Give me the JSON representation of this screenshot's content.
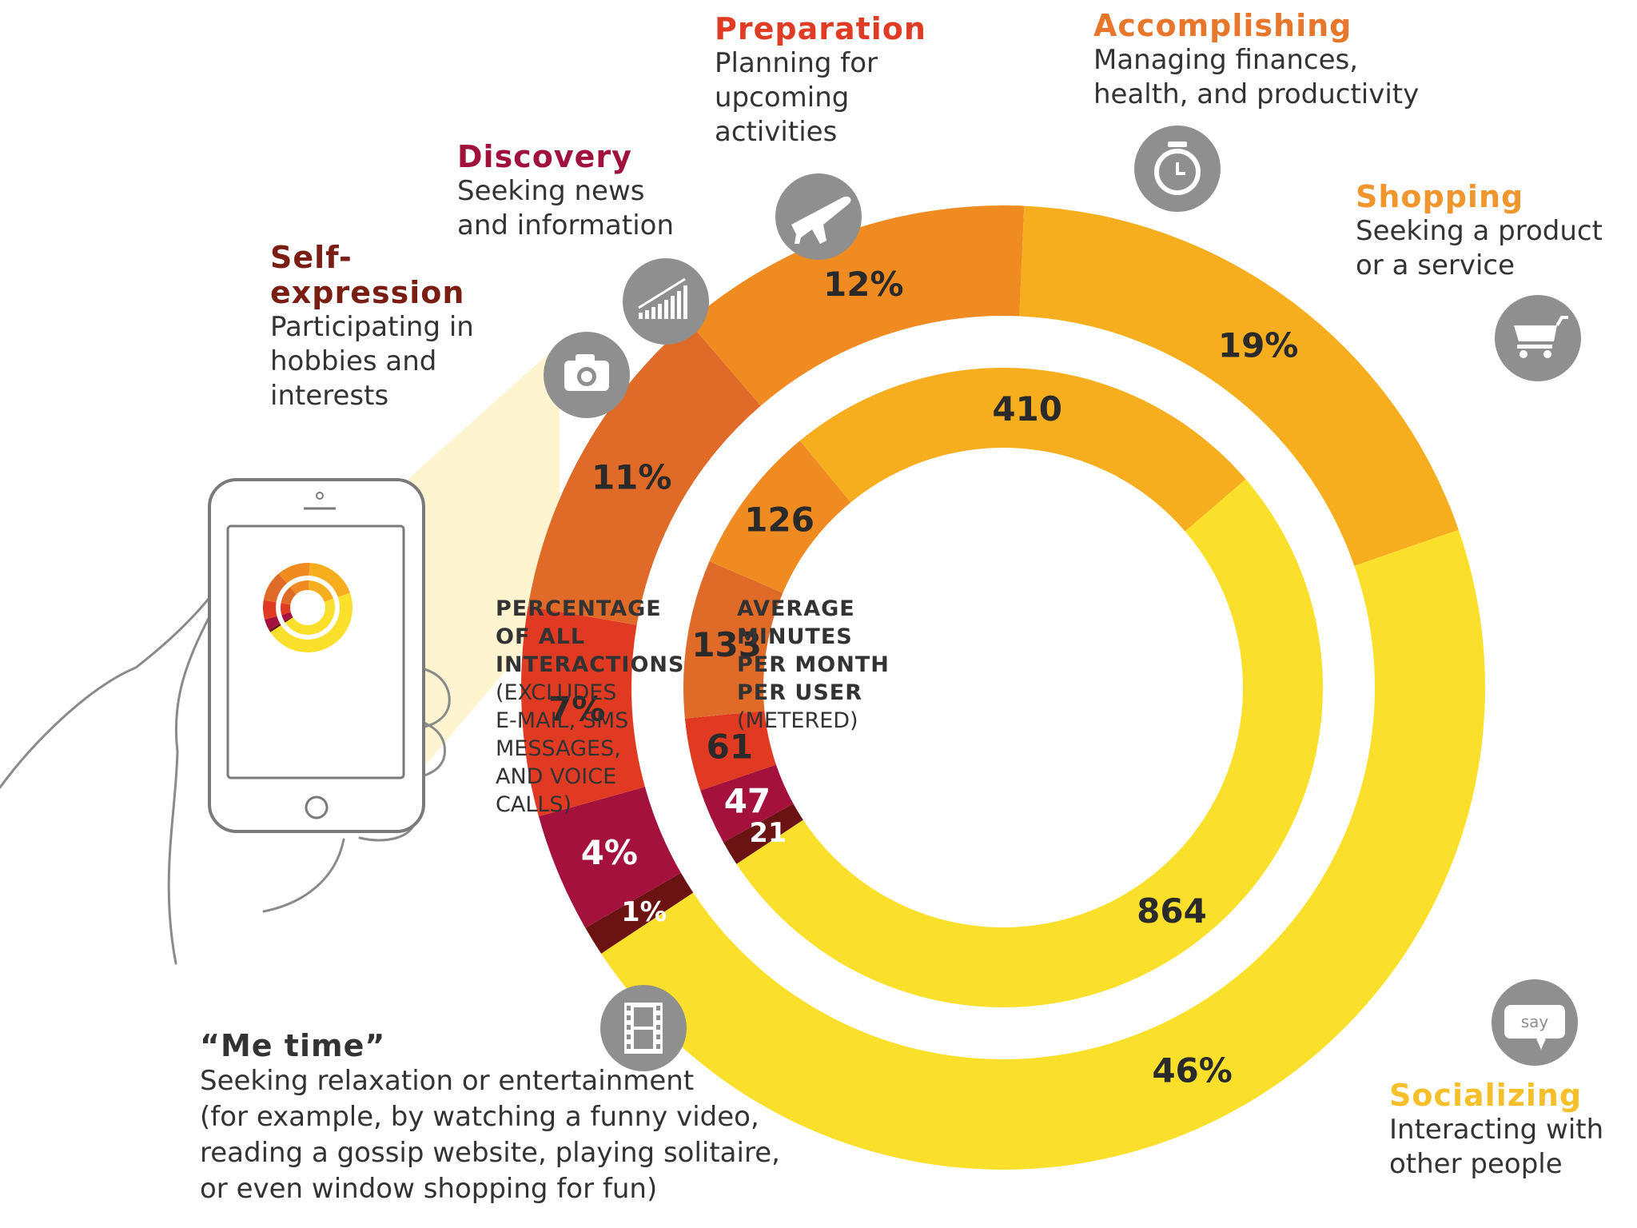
{
  "chart_data": {
    "type": "donut",
    "title": "",
    "outer_ring": {
      "caption_heading": [
        "PERCENTAGE",
        "OF ALL",
        "INTERACTIONS"
      ],
      "caption_note": [
        "(EXCLUDES",
        "E-MAIL, SMS",
        "MESSAGES,",
        "AND VOICE",
        "CALLS)"
      ],
      "unit": "percent",
      "segments": [
        {
          "category": "Self-expression",
          "value": 1,
          "label": "1%",
          "color": "#6B1212"
        },
        {
          "category": "Discovery",
          "value": 4,
          "label": "4%",
          "color": "#A5113D"
        },
        {
          "category": "Preparation",
          "value": 7,
          "label": "7%",
          "color": "#E13A22"
        },
        {
          "category": "Accomplishing",
          "value": 11,
          "label": "11%",
          "color": "#E06A28"
        },
        {
          "category": "Shopping",
          "value": 12,
          "label": "12%",
          "color": "#F08B22"
        },
        {
          "category": "Socializing",
          "value": 19,
          "label": "19%",
          "color": "#F6AE1E"
        },
        {
          "category": "Me time",
          "value": 46,
          "label": "46%",
          "color": "#FAE02B"
        }
      ]
    },
    "inner_ring": {
      "caption_heading": [
        "AVERAGE",
        "MINUTES",
        "PER MONTH",
        "PER USER"
      ],
      "caption_note": [
        "(METERED)"
      ],
      "unit": "minutes per month per user",
      "segments": [
        {
          "category": "Self-expression",
          "value": 21,
          "label": "21",
          "color": "#6B1212"
        },
        {
          "category": "Discovery",
          "value": 47,
          "label": "47",
          "color": "#A5113D"
        },
        {
          "category": "Preparation",
          "value": 61,
          "label": "61",
          "color": "#E13A22"
        },
        {
          "category": "Accomplishing",
          "value": 133,
          "label": "133",
          "color": "#E06A28"
        },
        {
          "category": "Shopping",
          "value": 126,
          "label": "126",
          "color": "#F08B22"
        },
        {
          "category": "Socializing",
          "value": 410,
          "label": "410",
          "color": "#F6AE1E"
        },
        {
          "category": "Me time",
          "value": 864,
          "label": "864",
          "color": "#FAE02B"
        }
      ]
    }
  },
  "categories": {
    "self_expression": {
      "title_line1": "Self-",
      "title_line2": "expression",
      "desc": [
        "Participating in",
        "hobbies and",
        "interests"
      ],
      "color": "#7A1E14",
      "icon": "camera-icon"
    },
    "discovery": {
      "title": "Discovery",
      "desc": [
        "Seeking news",
        "and information"
      ],
      "color": "#A0123C",
      "icon": "bar-chart-icon"
    },
    "preparation": {
      "title": "Preparation",
      "desc": [
        "Planning for",
        "upcoming",
        "activities"
      ],
      "color": "#E03B24",
      "icon": "airplane-icon"
    },
    "accomplishing": {
      "title": "Accomplishing",
      "desc": [
        "Managing finances,",
        "health, and productivity"
      ],
      "color": "#E8772C",
      "icon": "alarm-clock-icon"
    },
    "shopping": {
      "title": "Shopping",
      "desc": [
        "Seeking a product",
        "or a service"
      ],
      "color": "#F0962E",
      "icon": "shopping-cart-icon"
    },
    "socializing": {
      "title": "Socializing",
      "desc": [
        "Interacting with",
        "other people"
      ],
      "color": "#F5C02B",
      "icon": "speech-bubble-icon"
    },
    "me_time": {
      "title": "“Me time”",
      "desc": [
        "Seeking relaxation or entertainment",
        "(for example, by watching a funny video,",
        "reading a gossip website, playing solitaire,",
        "or even window shopping for fun)"
      ],
      "color": "#333333",
      "icon": "film-strip-icon"
    }
  },
  "say_icon_text": "say"
}
